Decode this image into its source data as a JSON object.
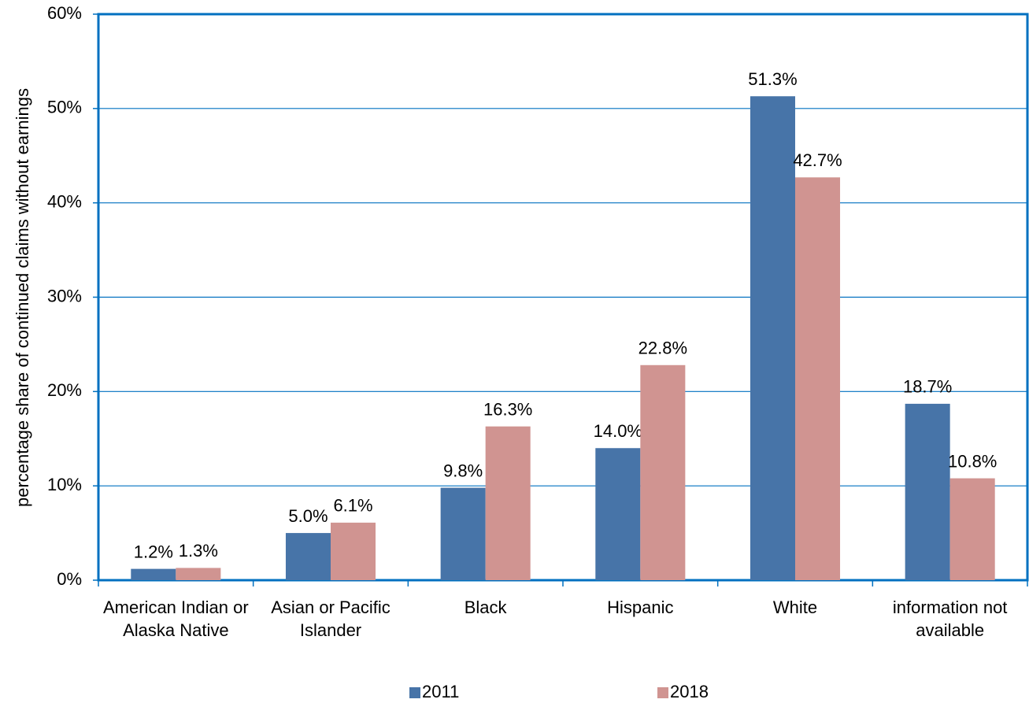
{
  "chart_data": {
    "type": "bar",
    "y_label": "percentage share of continued claims without earnings",
    "categories": [
      "American Indian or Alaska Native",
      "Asian or Pacific Islander",
      "Black",
      "Hispanic",
      "White",
      "information not available"
    ],
    "series": [
      {
        "name": "2011",
        "color": "#4774a8",
        "values": [
          1.2,
          5.0,
          9.8,
          14.0,
          51.3,
          18.7
        ],
        "value_labels": [
          "1.2%",
          "5.0%",
          "9.8%",
          "14.0%",
          "51.3%",
          "18.7%"
        ]
      },
      {
        "name": "2018",
        "color": "#d09491",
        "values": [
          1.3,
          6.1,
          16.3,
          22.8,
          42.7,
          10.8
        ],
        "value_labels": [
          "1.3%",
          "6.1%",
          "16.3%",
          "22.8%",
          "42.7%",
          "10.8%"
        ]
      }
    ],
    "ylim": [
      0,
      60
    ],
    "yticks": [
      {
        "value": 0,
        "label": "0%"
      },
      {
        "value": 10,
        "label": "10%"
      },
      {
        "value": 20,
        "label": "20%"
      },
      {
        "value": 30,
        "label": "30%"
      },
      {
        "value": 40,
        "label": "40%"
      },
      {
        "value": 50,
        "label": "50%"
      },
      {
        "value": 60,
        "label": "60%"
      }
    ],
    "grid": true,
    "legend": "bottom",
    "grid_color": "#0070c0"
  }
}
